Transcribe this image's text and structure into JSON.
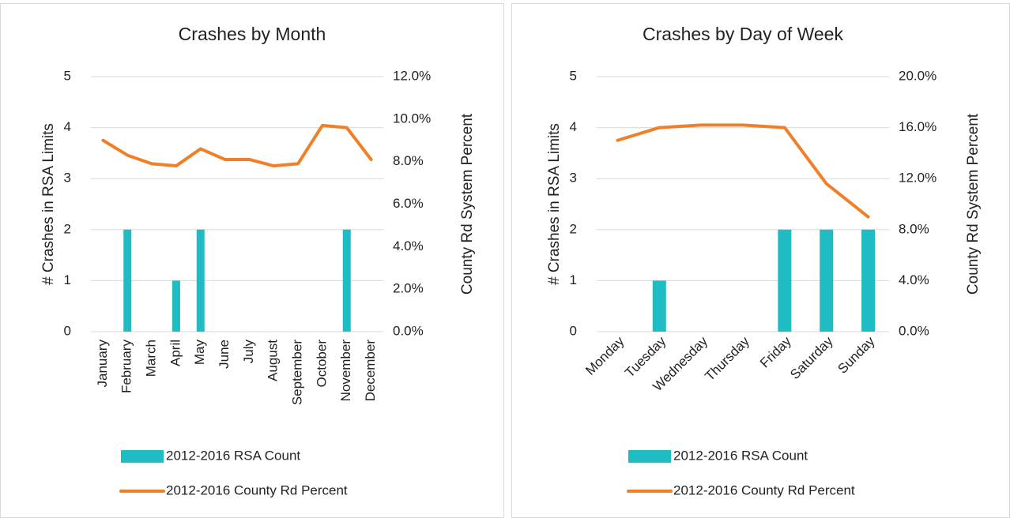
{
  "chart_data": [
    {
      "type": "combo",
      "title": "Crashes by Month",
      "y_label": "# Crashes in RSA Limits",
      "y2_label": "County Rd System Percent",
      "categories": [
        "January",
        "February",
        "March",
        "April",
        "May",
        "June",
        "July",
        "August",
        "September",
        "October",
        "November",
        "December"
      ],
      "series": [
        {
          "name": "2012-2016 RSA Count",
          "type": "bar",
          "color": "#20bcc4",
          "values": [
            0,
            2,
            0,
            1,
            2,
            0,
            0,
            0,
            0,
            0,
            2,
            0
          ]
        },
        {
          "name": "2012-2016 County Rd Percent",
          "type": "line",
          "axis": "y2",
          "color": "#f07f2a",
          "values": [
            9.0,
            8.3,
            7.9,
            7.8,
            8.6,
            8.1,
            8.1,
            7.8,
            7.9,
            9.7,
            9.6,
            8.1
          ]
        }
      ],
      "ylim": [
        0,
        5
      ],
      "yticks": [
        0,
        1,
        2,
        3,
        4,
        5
      ],
      "y2lim": [
        0,
        12
      ],
      "y2ticks": [
        {
          "value": 0,
          "label": "0.0%"
        },
        {
          "value": 2,
          "label": "2.0%"
        },
        {
          "value": 4,
          "label": "4.0%"
        },
        {
          "value": 6,
          "label": "6.0%"
        },
        {
          "value": 8,
          "label": "8.0%"
        },
        {
          "value": 10,
          "label": "10.0%"
        },
        {
          "value": 12,
          "label": "12.0%"
        }
      ],
      "grid": true
    },
    {
      "type": "combo",
      "title": "Crashes by Day of Week",
      "y_label": "# Crashes in RSA Limits",
      "y2_label": "County Rd System Percent",
      "categories": [
        "Monday",
        "Tuesday",
        "Wednesday",
        "Thursday",
        "Friday",
        "Saturday",
        "Sunday"
      ],
      "series": [
        {
          "name": "2012-2016 RSA Count",
          "type": "bar",
          "color": "#20bcc4",
          "values": [
            0,
            1,
            0,
            0,
            2,
            2,
            2
          ]
        },
        {
          "name": "2012-2016 County Rd Percent",
          "type": "line",
          "axis": "y2",
          "color": "#f07f2a",
          "values": [
            15.0,
            16.0,
            16.2,
            16.2,
            16.0,
            11.6,
            9.0
          ]
        }
      ],
      "ylim": [
        0,
        5
      ],
      "yticks": [
        0,
        1,
        2,
        3,
        4,
        5
      ],
      "y2lim": [
        0,
        20
      ],
      "y2ticks": [
        {
          "value": 0,
          "label": "0.0%"
        },
        {
          "value": 4,
          "label": "4.0%"
        },
        {
          "value": 8,
          "label": "8.0%"
        },
        {
          "value": 12,
          "label": "12.0%"
        },
        {
          "value": 16,
          "label": "16.0%"
        },
        {
          "value": 20,
          "label": "20.0%"
        }
      ],
      "grid": true
    }
  ]
}
